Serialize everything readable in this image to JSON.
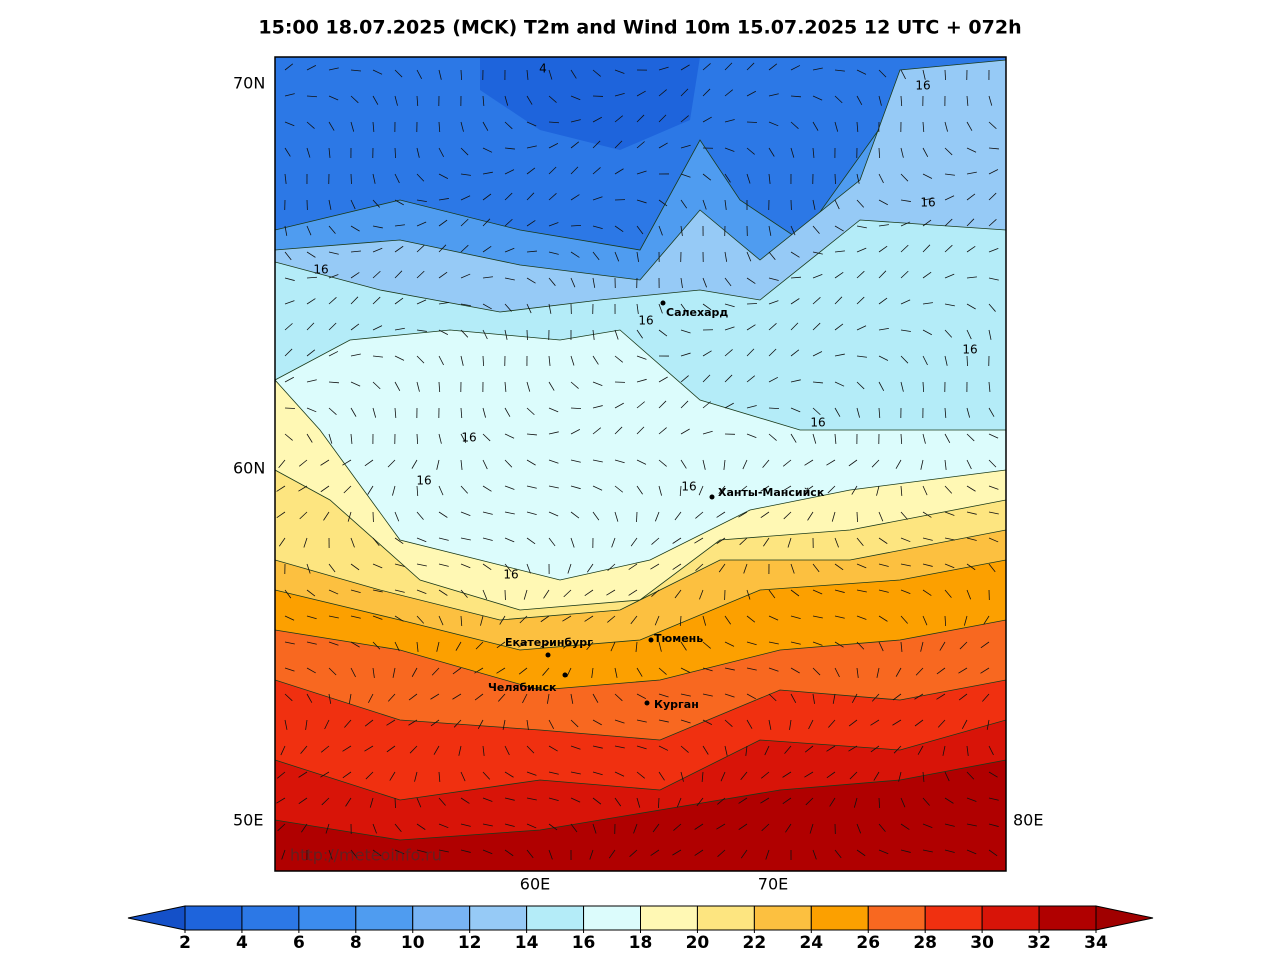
{
  "header": {
    "title": "15:00 18.07.2025 (MCK) T2m and Wind 10m 15.07.2025 12 UTC + 072h"
  },
  "map": {
    "lat_labels": [
      "70N",
      "60N"
    ],
    "lon_labels_side": [
      "50E",
      "80E"
    ],
    "lon_labels_bottom": [
      "60E",
      "70E"
    ],
    "cities": [
      "Салехард",
      "Ханты-Мансийск",
      "Екатеринбург",
      "Тюмень",
      "Челябинск",
      "Курган"
    ],
    "contour_labels": [
      "4",
      "16",
      "16",
      "16",
      "16",
      "16",
      "16",
      "16",
      "16",
      "16",
      "16"
    ],
    "watermark": "http://meteoinfo.ru"
  },
  "colorbar": {
    "ticks": [
      2,
      4,
      6,
      8,
      10,
      12,
      14,
      16,
      18,
      20,
      22,
      24,
      26,
      28,
      30,
      32,
      34
    ],
    "colors": [
      "#1e64dc",
      "#2c78e6",
      "#3c8cee",
      "#4f9cf0",
      "#78b4f4",
      "#96caf6",
      "#b4ecf8",
      "#dcfcfc",
      "#fff8b4",
      "#fde580",
      "#fcc040",
      "#fca000",
      "#f86820",
      "#f03010",
      "#d81408",
      "#b00000"
    ],
    "under_color": "#1450c8",
    "over_color": "#a00000"
  }
}
